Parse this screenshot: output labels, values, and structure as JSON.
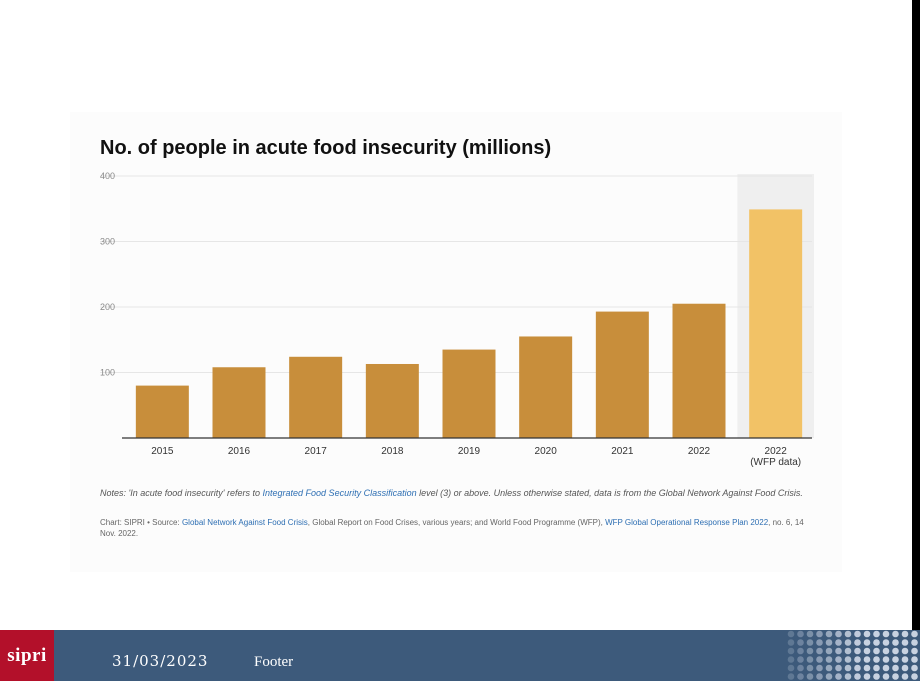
{
  "chart_data": {
    "type": "bar",
    "title": "No. of people in acute food insecurity (millions)",
    "categories": [
      "2015",
      "2016",
      "2017",
      "2018",
      "2019",
      "2020",
      "2021",
      "2022",
      "2022\n(WFP data)"
    ],
    "category_lines": [
      [
        "2015"
      ],
      [
        "2016"
      ],
      [
        "2017"
      ],
      [
        "2018"
      ],
      [
        "2019"
      ],
      [
        "2020"
      ],
      [
        "2021"
      ],
      [
        "2022"
      ],
      [
        "2022",
        "(WFP data)"
      ]
    ],
    "values": [
      80,
      108,
      124,
      113,
      135,
      155,
      193,
      205,
      349
    ],
    "highlight_index": 8,
    "ylim": [
      0,
      400
    ],
    "yticks": [
      100,
      200,
      300,
      400
    ],
    "grid": true,
    "colors": {
      "bar": "#c88e3b",
      "highlight_bar": "#f2c266",
      "highlight_bg": "#efefef",
      "grid": "#e6e6e6",
      "axis": "#333333"
    }
  },
  "notes": {
    "prefix": "Notes: 'In acute food insecurity' refers to ",
    "link": "Integrated Food Security Classification",
    "suffix": " level (3) or above. Unless otherwise stated, data is from the Global Network Against Food Crisis."
  },
  "source": {
    "prefix": "Chart: SIPRI • Source: ",
    "link1": "Global Network Against Food Crisis",
    "middle": ", Global Report on Food Crises, various years; and World Food Programme (WFP), ",
    "link2": "WFP Global Operational Response Plan 2022",
    "suffix": ", no. 6, 14 Nov. 2022."
  },
  "footer": {
    "logo": "sipri",
    "date": "31/03/2023",
    "text": "Footer"
  }
}
